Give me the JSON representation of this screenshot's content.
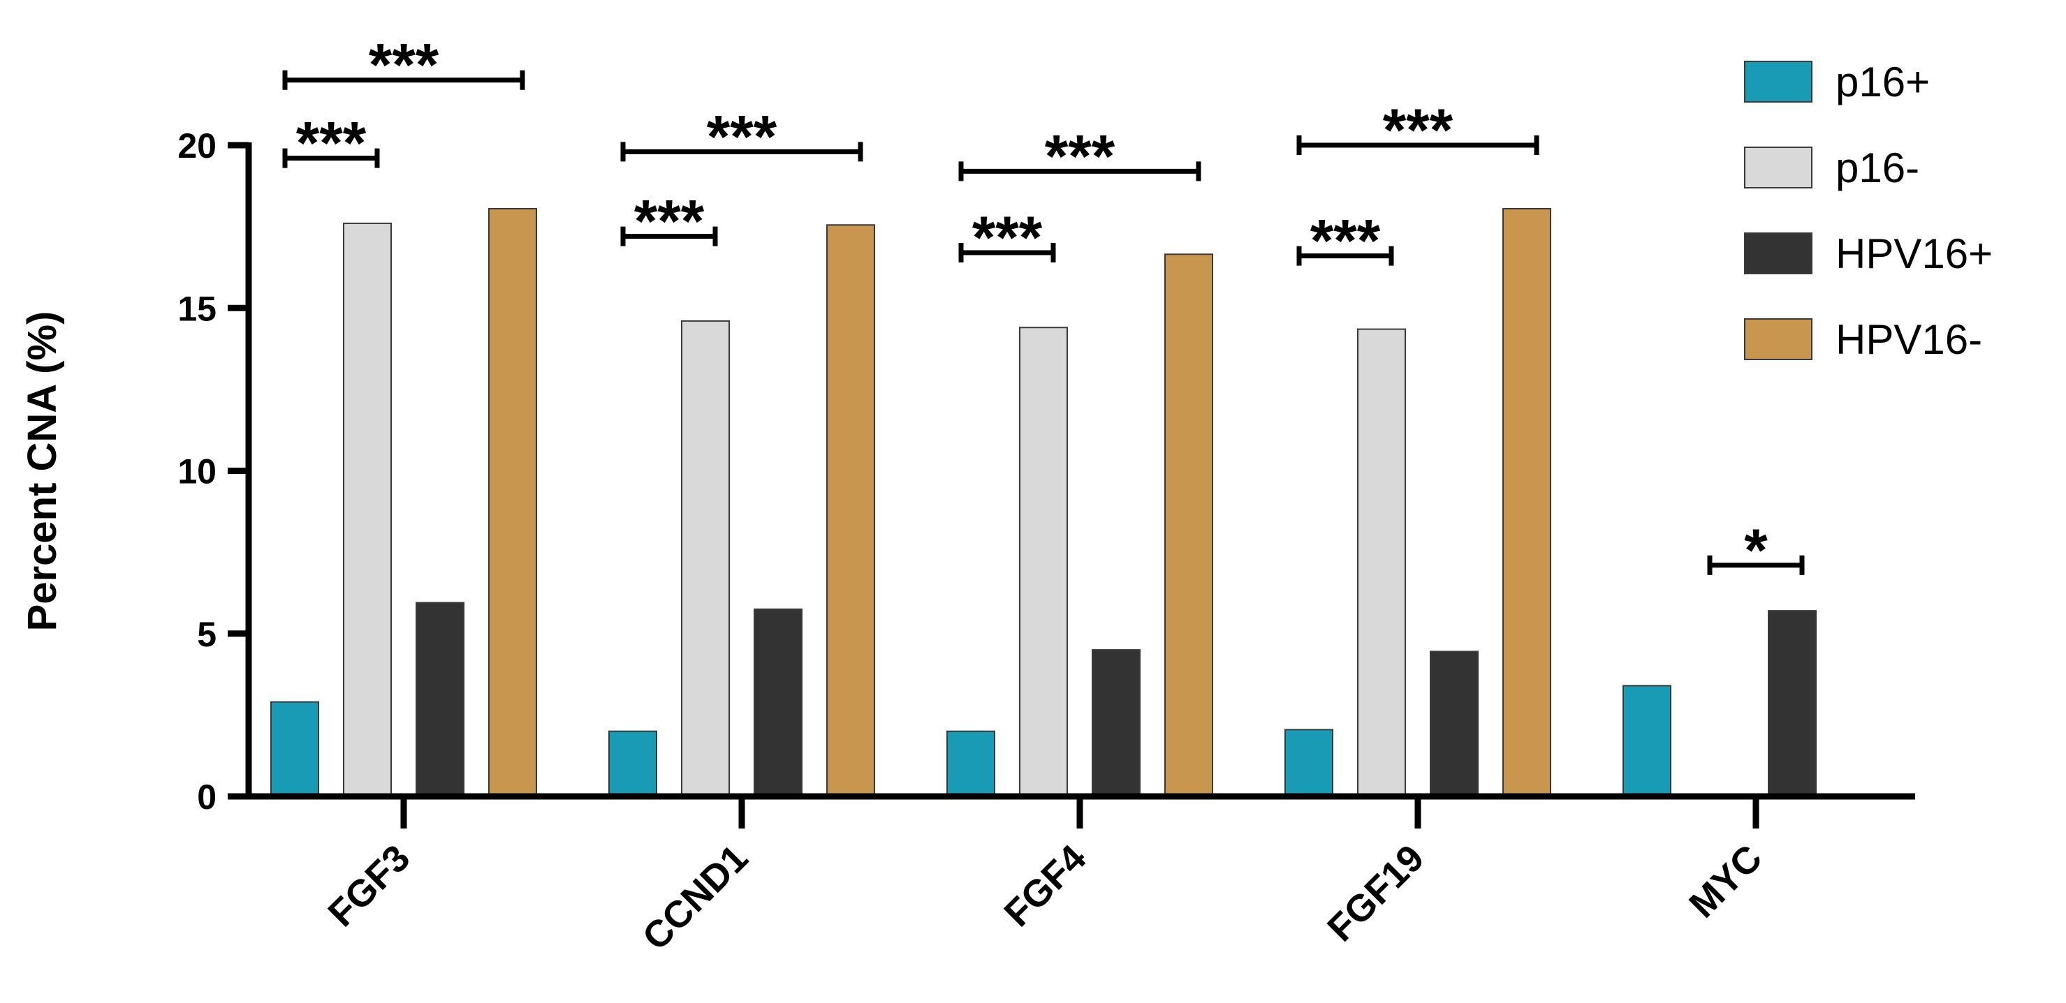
{
  "chart_data": {
    "type": "bar",
    "title": "",
    "xlabel": "",
    "ylabel": "Percent CNA (%)",
    "ylim": [
      0,
      20
    ],
    "yticks": [
      0,
      5,
      10,
      15,
      20
    ],
    "categories": [
      "FGF3",
      "CCND1",
      "FGF4",
      "FGF19",
      "MYC"
    ],
    "series": [
      {
        "name": "p16+",
        "color": "#1a9bb5",
        "values": [
          2.9,
          2.0,
          2.0,
          2.05,
          3.4
        ]
      },
      {
        "name": "p16-",
        "color": "#d9d9d9",
        "values": [
          17.6,
          14.6,
          14.4,
          14.35,
          0
        ]
      },
      {
        "name": "HPV16+",
        "color": "#333333",
        "values": [
          5.95,
          5.75,
          4.5,
          4.45,
          5.7
        ]
      },
      {
        "name": "HPV16-",
        "color": "#c8964e",
        "values": [
          18.05,
          17.55,
          16.65,
          18.05,
          null
        ]
      }
    ],
    "legend": {
      "position": "top-right"
    },
    "grid": false,
    "annotations": [
      {
        "category": "FGF3",
        "from_series": 0,
        "to_series": 1,
        "label": "***",
        "y": 19.6
      },
      {
        "category": "FGF3",
        "from_series": 0,
        "to_series": 3,
        "label": "***",
        "y": 22.0
      },
      {
        "category": "CCND1",
        "from_series": 0,
        "to_series": 1,
        "label": "***",
        "y": 17.2
      },
      {
        "category": "CCND1",
        "from_series": 0,
        "to_series": 3,
        "label": "***",
        "y": 19.8
      },
      {
        "category": "FGF4",
        "from_series": 0,
        "to_series": 1,
        "label": "***",
        "y": 16.7
      },
      {
        "category": "FGF4",
        "from_series": 0,
        "to_series": 3,
        "label": "***",
        "y": 19.2
      },
      {
        "category": "FGF19",
        "from_series": 0,
        "to_series": 1,
        "label": "***",
        "y": 16.6
      },
      {
        "category": "FGF19",
        "from_series": 0,
        "to_series": 3,
        "label": "***",
        "y": 20.0
      },
      {
        "category": "MYC",
        "from_series": 1,
        "to_series": 2,
        "label": "*",
        "y": 7.1
      }
    ]
  }
}
